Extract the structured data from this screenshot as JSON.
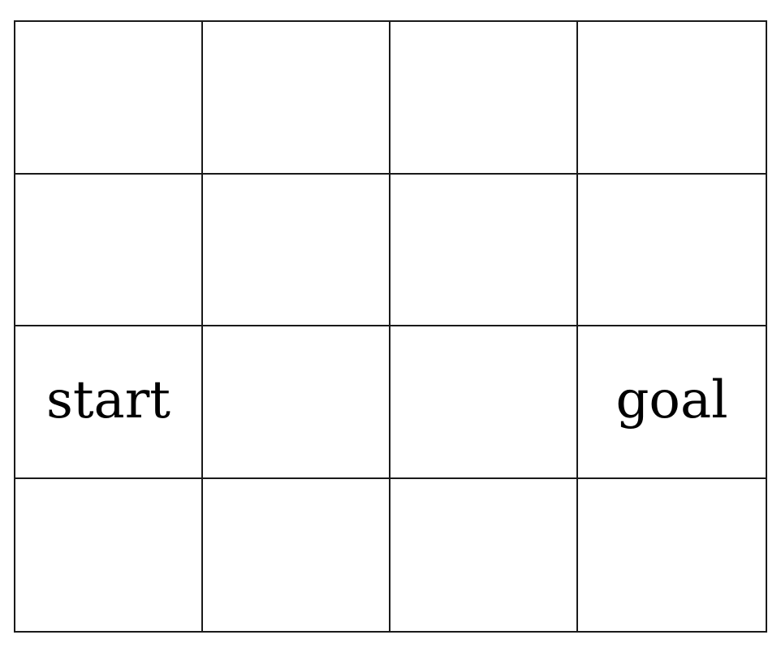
{
  "grid": {
    "rows": 4,
    "cols": 4,
    "cells": [
      [
        "",
        "",
        "",
        ""
      ],
      [
        "",
        "",
        "",
        ""
      ],
      [
        "start",
        "",
        "",
        "goal"
      ],
      [
        "",
        "",
        "",
        ""
      ]
    ]
  },
  "colors": {
    "background": "#ffffff",
    "line": "#1a1a1a",
    "text": "#000000"
  }
}
